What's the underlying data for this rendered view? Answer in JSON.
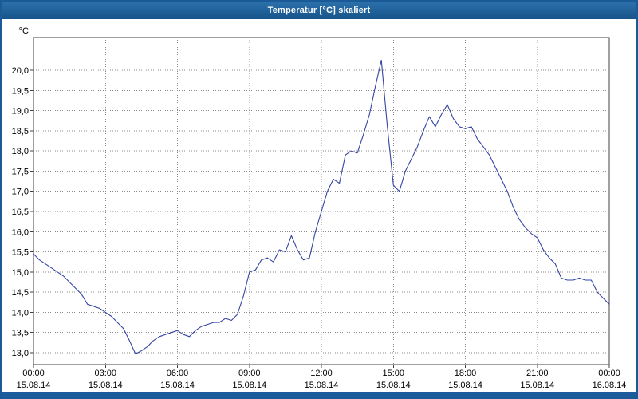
{
  "window": {
    "title": "Temperatur [°C] skaliert",
    "titlebar_color": "#1c5c9c",
    "border_color": "#1a5a96"
  },
  "chart_data": {
    "type": "line",
    "title": "Temperatur [°C] skaliert",
    "ylabel": "°C",
    "ylim": [
      13.0,
      20.0
    ],
    "ytick_step": 0.5,
    "ytick_labels": [
      "20,0",
      "19,5",
      "19,0",
      "18,5",
      "18,0",
      "17,5",
      "17,0",
      "16,5",
      "16,0",
      "15,5",
      "15,0",
      "14,5",
      "14,0",
      "13,5",
      "13,0"
    ],
    "xlim_hours": [
      0,
      24
    ],
    "xtick_step_hours": 3,
    "xticks": [
      {
        "time": "00:00",
        "date": "15.08.14"
      },
      {
        "time": "03:00",
        "date": "15.08.14"
      },
      {
        "time": "06:00",
        "date": "15.08.14"
      },
      {
        "time": "09:00",
        "date": "15.08.14"
      },
      {
        "time": "12:00",
        "date": "15.08.14"
      },
      {
        "time": "15:00",
        "date": "15.08.14"
      },
      {
        "time": "18:00",
        "date": "15.08.14"
      },
      {
        "time": "21:00",
        "date": "15.08.14"
      },
      {
        "time": "00:00",
        "date": "16.08.14"
      }
    ],
    "grid": "dotted",
    "grid_color": "#8a8a8a",
    "frame_color": "#404040",
    "line_color": "#3545a3",
    "x_start": 0,
    "x_step_hours": 0.25,
    "values": [
      15.45,
      15.3,
      15.2,
      15.1,
      15.0,
      14.9,
      14.75,
      14.6,
      14.45,
      14.2,
      14.15,
      14.1,
      14.0,
      13.9,
      13.75,
      13.6,
      13.3,
      12.97,
      13.05,
      13.15,
      13.3,
      13.4,
      13.45,
      13.5,
      13.55,
      13.45,
      13.4,
      13.55,
      13.65,
      13.7,
      13.75,
      13.75,
      13.85,
      13.8,
      13.95,
      14.4,
      15.0,
      15.05,
      15.3,
      15.35,
      15.25,
      15.55,
      15.5,
      15.9,
      15.55,
      15.3,
      15.35,
      16.0,
      16.5,
      17.0,
      17.3,
      17.2,
      17.9,
      18.0,
      17.95,
      18.4,
      18.9,
      19.6,
      20.25,
      18.6,
      17.15,
      17.0,
      17.5,
      17.8,
      18.1,
      18.5,
      18.85,
      18.6,
      18.9,
      19.15,
      18.8,
      18.6,
      18.55,
      18.6,
      18.3,
      18.1,
      17.9,
      17.6,
      17.3,
      17.0,
      16.6,
      16.3,
      16.1,
      15.95,
      15.85,
      15.55,
      15.35,
      15.2,
      14.85,
      14.8,
      14.8,
      14.85,
      14.8,
      14.8,
      14.5,
      14.35,
      14.2
    ]
  }
}
